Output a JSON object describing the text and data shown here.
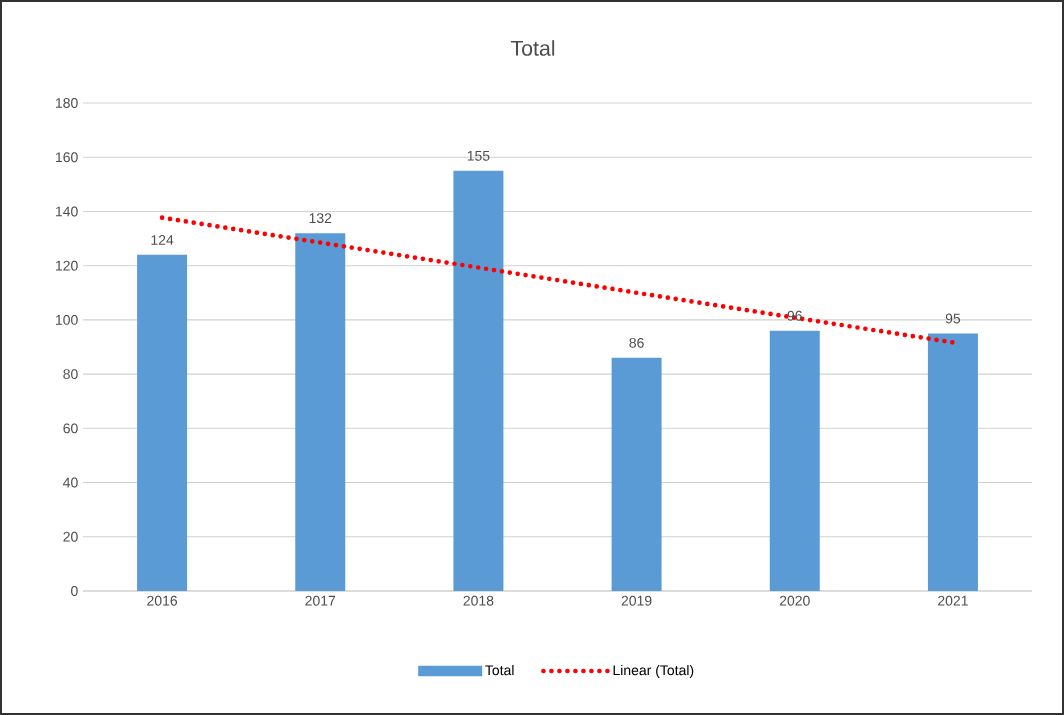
{
  "chart_data": {
    "type": "bar",
    "title": "Total",
    "categories": [
      "2016",
      "2017",
      "2018",
      "2019",
      "2020",
      "2021"
    ],
    "series": [
      {
        "name": "Total",
        "color": "#5b9bd5",
        "values": [
          124,
          132,
          155,
          86,
          96,
          95
        ],
        "value_labels": [
          "124",
          "132",
          "155",
          "86",
          "96",
          "95"
        ]
      },
      {
        "name": "Linear (Total)",
        "type": "line",
        "color": "#ff0000",
        "line_style": "dotted",
        "values": [
          137.7,
          128.5,
          119.3,
          110.0,
          100.8,
          91.7
        ]
      }
    ],
    "ylim": [
      0,
      180
    ],
    "yticks": [
      0,
      20,
      40,
      60,
      80,
      100,
      120,
      140,
      160,
      180
    ],
    "grid": "y",
    "legend": "bottom"
  }
}
